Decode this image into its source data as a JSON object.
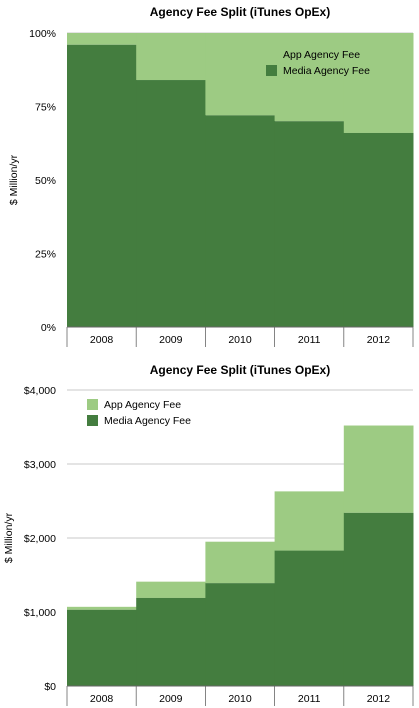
{
  "colors": {
    "app": "#9dcb83",
    "media": "#447d3f",
    "grid": "#c8c8c8",
    "axis": "#666666"
  },
  "chart_data": [
    {
      "type": "area",
      "style": "stepped-stacked",
      "title": "Agency Fee Split (iTunes OpEx)",
      "xlabel": "",
      "ylabel": "$ Million/yr",
      "categories": [
        "2008",
        "2009",
        "2010",
        "2011",
        "2012"
      ],
      "yticks": [
        "0%",
        "25%",
        "50%",
        "75%",
        "100%"
      ],
      "ylim": [
        0,
        100
      ],
      "grid": true,
      "legend": "top-right",
      "series": [
        {
          "name": "Media Agency Fee",
          "color": "#447d3f",
          "values": [
            96,
            84,
            72,
            70,
            66
          ]
        },
        {
          "name": "App Agency Fee",
          "color": "#9dcb83",
          "values": [
            4,
            16,
            28,
            30,
            34
          ]
        }
      ],
      "legend_order": [
        "App Agency Fee",
        "Media Agency Fee"
      ]
    },
    {
      "type": "area",
      "style": "stepped-stacked",
      "title": "Agency Fee Split (iTunes OpEx)",
      "xlabel": "",
      "ylabel": "$ Million/yr",
      "categories": [
        "2008",
        "2009",
        "2010",
        "2011",
        "2012"
      ],
      "yticks": [
        "$0",
        "$1,000",
        "$2,000",
        "$3,000",
        "$4,000"
      ],
      "ylim": [
        0,
        4000
      ],
      "grid": true,
      "legend": "top-left",
      "series": [
        {
          "name": "Media Agency Fee",
          "color": "#447d3f",
          "values": [
            1030,
            1190,
            1390,
            1830,
            2340
          ]
        },
        {
          "name": "App Agency Fee",
          "color": "#9dcb83",
          "values": [
            40,
            220,
            560,
            800,
            1180
          ]
        }
      ],
      "legend_order": [
        "App Agency Fee",
        "Media Agency Fee"
      ]
    }
  ]
}
